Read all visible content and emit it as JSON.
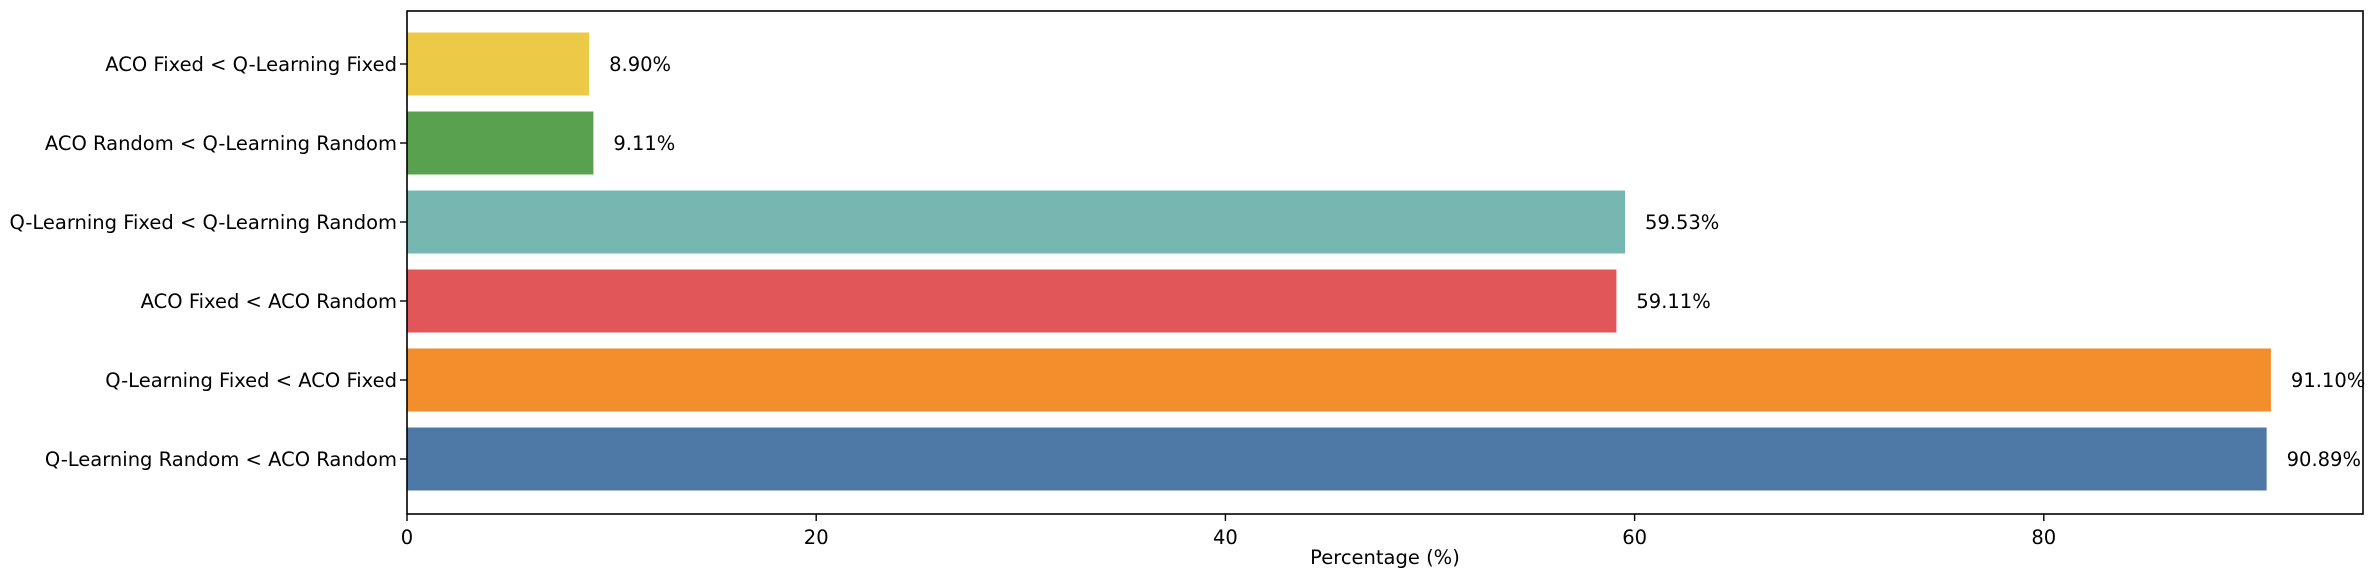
{
  "chart_data": {
    "type": "bar",
    "orientation": "horizontal",
    "categories": [
      "ACO Fixed < Q-Learning Fixed",
      "ACO Random < Q-Learning Random",
      "Q-Learning Fixed < Q-Learning Random",
      "ACO Fixed < ACO Random",
      "Q-Learning Fixed < ACO Fixed",
      "Q-Learning Random < ACO Random"
    ],
    "values": [
      8.9,
      9.11,
      59.53,
      59.11,
      91.1,
      90.89
    ],
    "value_labels": [
      "8.90%",
      "9.11%",
      "59.53%",
      "59.11%",
      "91.10%",
      "90.89%"
    ],
    "colors": [
      "#EDC948",
      "#59A14F",
      "#76B7B2",
      "#E15759",
      "#F28E2B",
      "#4E79A7"
    ],
    "xlabel": "Percentage (%)",
    "ylabel": "",
    "xlim": [
      0,
      95.6
    ],
    "xticks": [
      0,
      20,
      40,
      60,
      80
    ],
    "grid": false,
    "legend": "none"
  }
}
